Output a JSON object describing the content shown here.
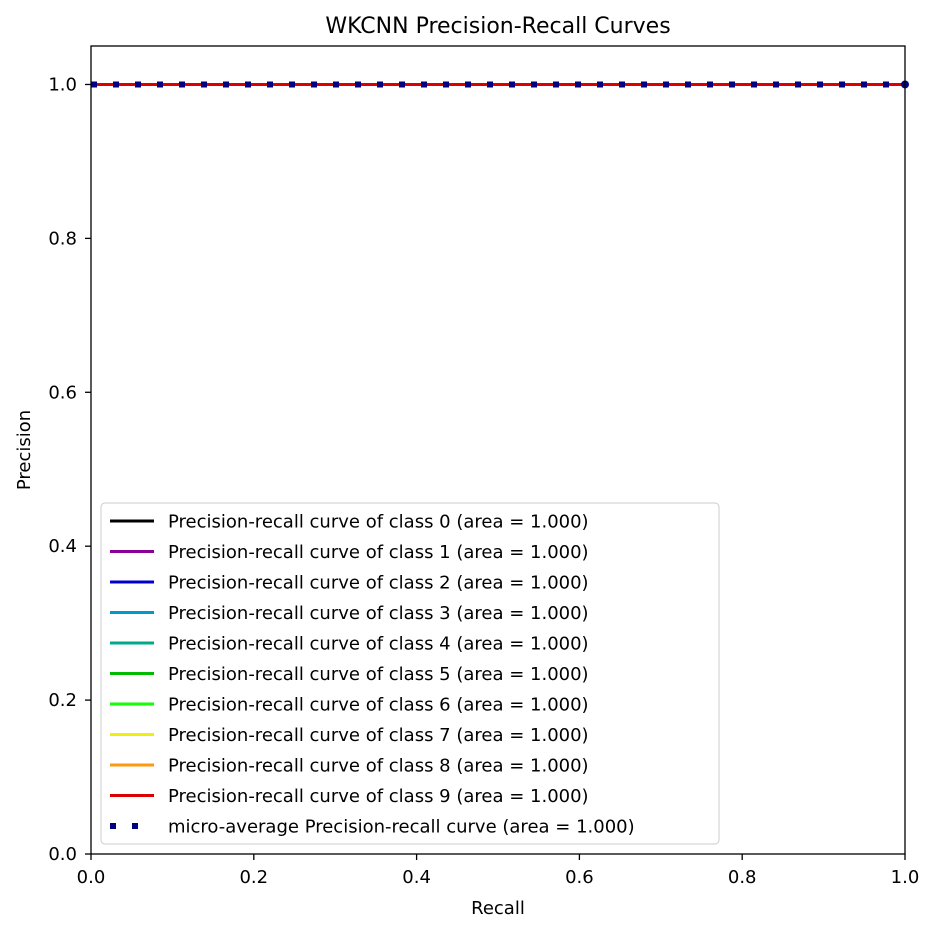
{
  "chart_data": {
    "type": "line",
    "title": "WKCNN Precision-Recall Curves",
    "xlabel": "Recall",
    "ylabel": "Precision",
    "xlim": [
      0.0,
      1.0
    ],
    "ylim": [
      0.0,
      1.05
    ],
    "xticks": [
      "0.0",
      "0.2",
      "0.4",
      "0.6",
      "0.8",
      "1.0"
    ],
    "yticks": [
      "0.0",
      "0.2",
      "0.4",
      "0.6",
      "0.8",
      "1.0"
    ],
    "grid": false,
    "legend_position": "lower-left",
    "series": [
      {
        "name": "Precision-recall curve of class 0 (area = 1.000)",
        "color": "#000000",
        "style": "solid",
        "x": [
          0.0,
          1.0
        ],
        "y": [
          1.0,
          1.0
        ]
      },
      {
        "name": "Precision-recall curve of class 1 (area = 1.000)",
        "color": "#8b0099",
        "style": "solid",
        "x": [
          0.0,
          1.0
        ],
        "y": [
          1.0,
          1.0
        ]
      },
      {
        "name": "Precision-recall curve of class 2 (area = 1.000)",
        "color": "#0000cc",
        "style": "solid",
        "x": [
          0.0,
          1.0
        ],
        "y": [
          1.0,
          1.0
        ]
      },
      {
        "name": "Precision-recall curve of class 3 (area = 1.000)",
        "color": "#0099cc",
        "style": "solid",
        "x": [
          0.0,
          1.0
        ],
        "y": [
          1.0,
          1.0
        ]
      },
      {
        "name": "Precision-recall curve of class 4 (area = 1.000)",
        "color": "#00aa88",
        "style": "solid",
        "x": [
          0.0,
          1.0
        ],
        "y": [
          1.0,
          1.0
        ]
      },
      {
        "name": "Precision-recall curve of class 5 (area = 1.000)",
        "color": "#00bb00",
        "style": "solid",
        "x": [
          0.0,
          1.0
        ],
        "y": [
          1.0,
          1.0
        ]
      },
      {
        "name": "Precision-recall curve of class 6 (area = 1.000)",
        "color": "#11ff00",
        "style": "solid",
        "x": [
          0.0,
          1.0
        ],
        "y": [
          1.0,
          1.0
        ]
      },
      {
        "name": "Precision-recall curve of class 7 (area = 1.000)",
        "color": "#eeee11",
        "style": "solid",
        "x": [
          0.0,
          1.0
        ],
        "y": [
          1.0,
          1.0
        ]
      },
      {
        "name": "Precision-recall curve of class 8 (area = 1.000)",
        "color": "#ff9911",
        "style": "solid",
        "x": [
          0.0,
          1.0
        ],
        "y": [
          1.0,
          1.0
        ]
      },
      {
        "name": "Precision-recall curve of class 9 (area = 1.000)",
        "color": "#dd0000",
        "style": "solid",
        "x": [
          0.0,
          1.0
        ],
        "y": [
          1.0,
          1.0
        ]
      },
      {
        "name": "micro-average Precision-recall curve (area = 1.000)",
        "color": "#000080",
        "style": "dotted",
        "x": [
          0.0,
          1.0
        ],
        "y": [
          1.0,
          1.0
        ]
      }
    ]
  }
}
